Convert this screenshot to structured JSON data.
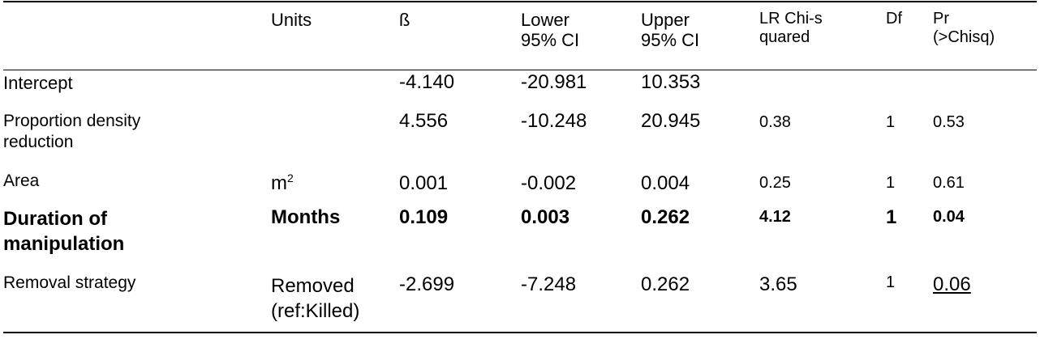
{
  "headers": {
    "units": "Units",
    "beta": "ß",
    "lower": "Lower 95% CI",
    "upper": "Upper 95% CI",
    "lr": "LR Chi-squared",
    "df": "Df",
    "pr": "Pr (>Chisq)"
  },
  "rows": [
    {
      "label": "Intercept",
      "units": "",
      "beta": "-4.140",
      "lower": "-20.981",
      "upper": "10.353",
      "lr": "",
      "df": "",
      "pr": ""
    },
    {
      "label": "Proportion density reduction",
      "units": "",
      "beta": "4.556",
      "lower": "-10.248",
      "upper": "20.945",
      "lr": "0.38",
      "df": "1",
      "pr": "0.53"
    },
    {
      "label": "Area",
      "units": "m",
      "units_sup": "2",
      "beta": "0.001",
      "lower": "-0.002",
      "upper": "0.004",
      "lr": "0.25",
      "df": "1",
      "pr": "0.61"
    },
    {
      "label": "Duration of manipulation",
      "units": "Months",
      "beta": "0.109",
      "lower": "0.003",
      "upper": "0.262",
      "lr": "4.12",
      "df": "1",
      "pr": "0.04"
    },
    {
      "label": "Removal strategy",
      "units": "Removed (ref:Killed)",
      "beta": "-2.699",
      "lower": "-7.248",
      "upper": "0.262",
      "lr": "3.65",
      "df": "1",
      "pr": "0.06"
    }
  ]
}
